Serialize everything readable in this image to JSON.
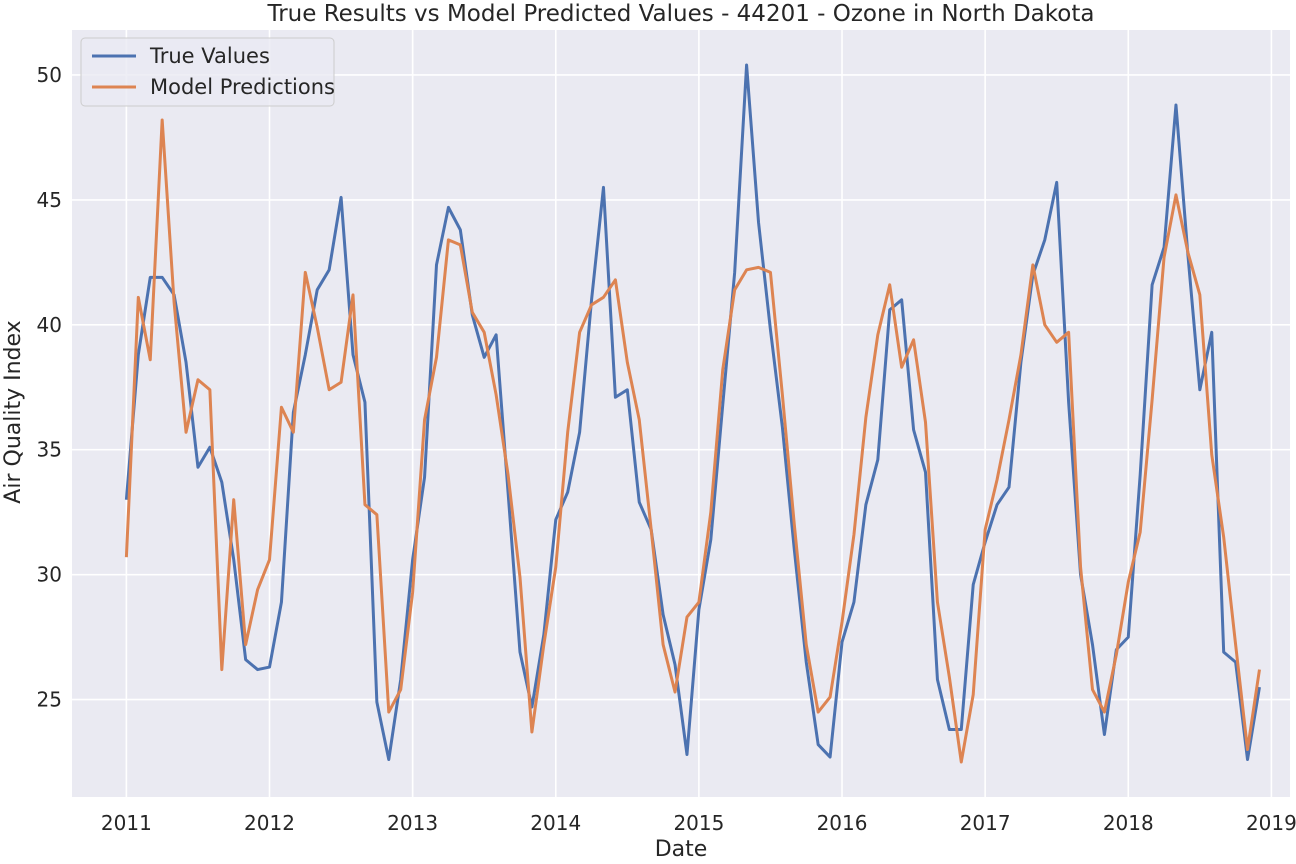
{
  "chart_data": {
    "type": "line",
    "title": "True Results vs Model Predicted Values - 44201 - Ozone in North Dakota",
    "xlabel": "Date",
    "ylabel": "Air Quality Index",
    "xlim": [
      2010.62,
      2019.13
    ],
    "ylim": [
      21.1,
      51.8
    ],
    "x_ticks": [
      2011,
      2012,
      2013,
      2014,
      2015,
      2016,
      2017,
      2018,
      2019
    ],
    "y_ticks": [
      25,
      30,
      35,
      40,
      45,
      50
    ],
    "grid": true,
    "legend_position": "top-left",
    "colors": {
      "background": "#eaeaf2",
      "grid": "#ffffff",
      "true": "#4c72b0",
      "pred": "#dd8452"
    },
    "series": [
      {
        "name": "True Values",
        "color": "#4c72b0",
        "x": [
          2011.0,
          2011.0833,
          2011.1667,
          2011.25,
          2011.3333,
          2011.4167,
          2011.5,
          2011.5833,
          2011.6667,
          2011.75,
          2011.8333,
          2011.9167,
          2012.0,
          2012.0833,
          2012.1667,
          2012.25,
          2012.3333,
          2012.4167,
          2012.5,
          2012.5833,
          2012.6667,
          2012.75,
          2012.8333,
          2012.9167,
          2013.0,
          2013.0833,
          2013.1667,
          2013.25,
          2013.3333,
          2013.4167,
          2013.5,
          2013.5833,
          2013.6667,
          2013.75,
          2013.8333,
          2013.9167,
          2014.0,
          2014.0833,
          2014.1667,
          2014.25,
          2014.3333,
          2014.4167,
          2014.5,
          2014.5833,
          2014.6667,
          2014.75,
          2014.8333,
          2014.9167,
          2015.0,
          2015.0833,
          2015.1667,
          2015.25,
          2015.3333,
          2015.4167,
          2015.5,
          2015.5833,
          2015.6667,
          2015.75,
          2015.8333,
          2015.9167,
          2016.0,
          2016.0833,
          2016.1667,
          2016.25,
          2016.3333,
          2016.4167,
          2016.5,
          2016.5833,
          2016.6667,
          2016.75,
          2016.8333,
          2016.9167,
          2017.0,
          2017.0833,
          2017.1667,
          2017.25,
          2017.3333,
          2017.4167,
          2017.5,
          2017.5833,
          2017.6667,
          2017.75,
          2017.8333,
          2017.9167,
          2018.0,
          2018.0833,
          2018.1667,
          2018.25,
          2018.3333,
          2018.4167,
          2018.5,
          2018.5833,
          2018.6667,
          2018.75,
          2018.8333,
          2018.9167
        ],
        "values": [
          33.0,
          38.8,
          41.9,
          41.9,
          41.2,
          38.5,
          34.3,
          35.1,
          33.7,
          30.6,
          26.6,
          26.2,
          26.3,
          28.9,
          36.5,
          38.8,
          41.4,
          42.2,
          45.1,
          38.8,
          36.9,
          24.9,
          22.6,
          25.8,
          30.6,
          33.9,
          42.4,
          44.7,
          43.8,
          40.4,
          38.7,
          39.6,
          33.3,
          26.9,
          24.7,
          27.6,
          32.2,
          33.3,
          35.7,
          41.0,
          45.5,
          37.1,
          37.4,
          32.9,
          31.8,
          28.4,
          26.4,
          22.8,
          28.6,
          31.4,
          36.8,
          42.1,
          50.4,
          44.1,
          39.8,
          35.9,
          31.0,
          26.5,
          23.2,
          22.7,
          27.3,
          28.9,
          32.8,
          34.6,
          40.6,
          41.0,
          35.8,
          34.1,
          25.8,
          23.8,
          23.8,
          29.6,
          31.3,
          32.8,
          33.5,
          38.5,
          42.0,
          43.4,
          45.7,
          36.9,
          30.0,
          27.2,
          23.6,
          27.0,
          27.5,
          34.0,
          41.6,
          43.1,
          48.8,
          42.8,
          37.4,
          39.7,
          26.9,
          26.5,
          22.6,
          25.5
        ]
      },
      {
        "name": "Model Predictions",
        "color": "#dd8452",
        "x": [
          2011.0,
          2011.0833,
          2011.1667,
          2011.25,
          2011.3333,
          2011.4167,
          2011.5,
          2011.5833,
          2011.6667,
          2011.75,
          2011.8333,
          2011.9167,
          2012.0,
          2012.0833,
          2012.1667,
          2012.25,
          2012.3333,
          2012.4167,
          2012.5,
          2012.5833,
          2012.6667,
          2012.75,
          2012.8333,
          2012.9167,
          2013.0,
          2013.0833,
          2013.1667,
          2013.25,
          2013.3333,
          2013.4167,
          2013.5,
          2013.5833,
          2013.6667,
          2013.75,
          2013.8333,
          2013.9167,
          2014.0,
          2014.0833,
          2014.1667,
          2014.25,
          2014.3333,
          2014.4167,
          2014.5,
          2014.5833,
          2014.6667,
          2014.75,
          2014.8333,
          2014.9167,
          2015.0,
          2015.0833,
          2015.1667,
          2015.25,
          2015.3333,
          2015.4167,
          2015.5,
          2015.5833,
          2015.6667,
          2015.75,
          2015.8333,
          2015.9167,
          2016.0,
          2016.0833,
          2016.1667,
          2016.25,
          2016.3333,
          2016.4167,
          2016.5,
          2016.5833,
          2016.6667,
          2016.75,
          2016.8333,
          2016.9167,
          2017.0,
          2017.0833,
          2017.1667,
          2017.25,
          2017.3333,
          2017.4167,
          2017.5,
          2017.5833,
          2017.6667,
          2017.75,
          2017.8333,
          2017.9167,
          2018.0,
          2018.0833,
          2018.1667,
          2018.25,
          2018.3333,
          2018.4167,
          2018.5,
          2018.5833,
          2018.6667,
          2018.75,
          2018.8333,
          2018.9167
        ],
        "values": [
          30.7,
          41.1,
          38.6,
          48.2,
          40.9,
          35.7,
          37.8,
          37.4,
          26.2,
          33.0,
          27.2,
          29.4,
          30.6,
          36.7,
          35.7,
          42.1,
          39.9,
          37.4,
          37.7,
          41.2,
          32.8,
          32.4,
          24.5,
          25.4,
          29.3,
          36.2,
          38.7,
          43.4,
          43.2,
          40.5,
          39.7,
          37.2,
          34.0,
          29.9,
          23.7,
          27.2,
          30.3,
          35.7,
          39.7,
          40.8,
          41.1,
          41.8,
          38.5,
          36.2,
          31.8,
          27.2,
          25.3,
          28.3,
          28.9,
          32.5,
          38.2,
          41.4,
          42.2,
          42.3,
          42.1,
          37.2,
          32.0,
          27.2,
          24.5,
          25.1,
          28.1,
          31.6,
          36.3,
          39.6,
          41.6,
          38.3,
          39.4,
          36.1,
          28.9,
          25.9,
          22.5,
          25.2,
          31.8,
          33.8,
          36.2,
          38.8,
          42.4,
          40.0,
          39.3,
          39.7,
          30.3,
          25.4,
          24.5,
          26.8,
          29.7,
          31.7,
          37.0,
          42.7,
          45.2,
          42.9,
          41.2,
          34.8,
          31.5,
          27.2,
          23.0,
          26.2
        ]
      }
    ]
  }
}
